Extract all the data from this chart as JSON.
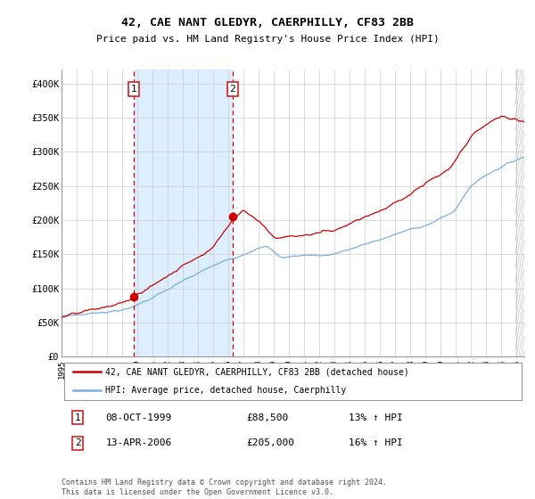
{
  "title": "42, CAE NANT GLEDYR, CAERPHILLY, CF83 2BB",
  "subtitle": "Price paid vs. HM Land Registry's House Price Index (HPI)",
  "legend_line1": "42, CAE NANT GLEDYR, CAERPHILLY, CF83 2BB (detached house)",
  "legend_line2": "HPI: Average price, detached house, Caerphilly",
  "transaction1_date": "08-OCT-1999",
  "transaction1_price": 88500,
  "transaction1_pct": "13%",
  "transaction2_date": "13-APR-2006",
  "transaction2_price": 205000,
  "transaction2_pct": "16%",
  "footnote1": "Contains HM Land Registry data © Crown copyright and database right 2024.",
  "footnote2": "This data is licensed under the Open Government Licence v3.0.",
  "red_color": "#cc0000",
  "blue_color": "#7aade0",
  "highlight_color": "#ddeeff",
  "marker_color": "#cc0000",
  "ylim": [
    0,
    420000
  ],
  "yticks": [
    0,
    50000,
    100000,
    150000,
    200000,
    250000,
    300000,
    350000,
    400000
  ],
  "ytick_labels": [
    "£0",
    "£50K",
    "£100K",
    "£150K",
    "£200K",
    "£250K",
    "£300K",
    "£350K",
    "£400K"
  ],
  "transaction1_x": 1999.77,
  "transaction2_x": 2006.27
}
